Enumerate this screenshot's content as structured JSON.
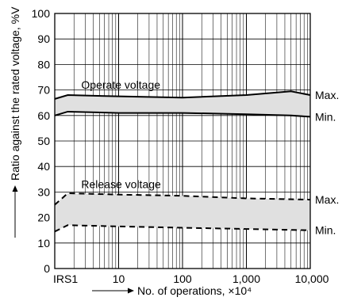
{
  "chart_data": {
    "type": "area",
    "xlabel": "No. of operations, ×10⁴",
    "ylabel": "Ratio against the rated voltage, %V",
    "x_scale": "log",
    "x_ticks": [
      "IRS1",
      "10",
      "100",
      "1,000",
      "10,000"
    ],
    "y_ticks": [
      "0",
      "10",
      "20",
      "30",
      "40",
      "50",
      "60",
      "70",
      "80",
      "90",
      "100"
    ],
    "ylim": [
      0,
      100
    ],
    "grid": true,
    "series": [
      {
        "name": "Max.",
        "style": "solid",
        "group": "operate",
        "points": [
          [
            1,
            66.5
          ],
          [
            1.6,
            68
          ],
          [
            10,
            67.5
          ],
          [
            100,
            67
          ],
          [
            1000,
            68
          ],
          [
            5000,
            69.5
          ],
          [
            10000,
            68
          ]
        ]
      },
      {
        "name": "Min.",
        "style": "solid",
        "group": "operate",
        "points": [
          [
            1,
            60
          ],
          [
            1.6,
            61.5
          ],
          [
            10,
            61
          ],
          [
            100,
            61
          ],
          [
            1000,
            60.5
          ],
          [
            5000,
            60
          ],
          [
            10000,
            59.5
          ]
        ]
      },
      {
        "name": "Max.",
        "style": "dashed",
        "group": "release",
        "points": [
          [
            1,
            25
          ],
          [
            1.6,
            29.5
          ],
          [
            10,
            29
          ],
          [
            100,
            28.5
          ],
          [
            1000,
            27.5
          ],
          [
            10000,
            27
          ]
        ]
      },
      {
        "name": "Min.",
        "style": "dashed",
        "group": "release",
        "points": [
          [
            1,
            14.5
          ],
          [
            1.6,
            17
          ],
          [
            10,
            16.5
          ],
          [
            100,
            16
          ],
          [
            1000,
            15.5
          ],
          [
            10000,
            15
          ]
        ]
      }
    ],
    "annotations": [
      "Operate voltage",
      "Release voltage"
    ],
    "colors": {
      "band": "#e0e0e0",
      "line": "#000000",
      "grid": "#000000"
    }
  }
}
